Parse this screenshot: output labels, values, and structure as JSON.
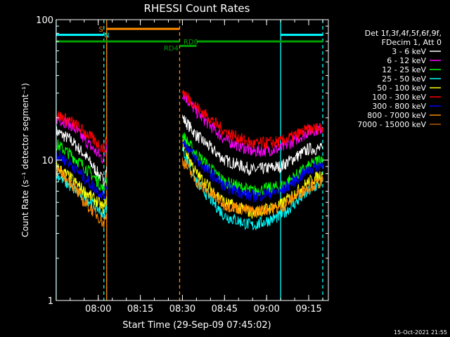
{
  "chart_data": {
    "type": "line",
    "title": "RHESSI Count Rates",
    "xlabel": "Start Time (29-Sep-09 07:45:02)",
    "ylabel": "Count Rate (s⁻¹ detector segment⁻¹)",
    "y_scale": "log",
    "ylim": [
      1,
      100
    ],
    "xlim": [
      "07:45:02",
      "09:22"
    ],
    "y_ticks": [
      "1",
      "10",
      "100"
    ],
    "x_ticks": [
      "08:00",
      "08:15",
      "08:30",
      "08:45",
      "09:00",
      "09:15"
    ],
    "grid": false,
    "legend_position": "top-right",
    "legend_header": [
      "Det 1f,3f,4f,5f,6f,9f,",
      "FDecim 1, Att 0"
    ],
    "footer_timestamp": "15-Oct-2021 21:55",
    "series": [
      {
        "name": "3 - 6 keV",
        "color": "#ffffff",
        "points": [
          [
            "07:45",
            16
          ],
          [
            "07:50",
            14
          ],
          [
            "07:55",
            11
          ],
          [
            "08:00",
            8
          ],
          [
            "08:02",
            7
          ],
          [
            "08:03",
            9
          ],
          [
            "08:30",
            20
          ],
          [
            "08:35",
            15
          ],
          [
            "08:45",
            10
          ],
          [
            "08:55",
            8.5
          ],
          [
            "09:05",
            9
          ],
          [
            "09:15",
            12
          ],
          [
            "09:20",
            12
          ]
        ]
      },
      {
        "name": "6 - 12 keV",
        "color": "#ff00ff",
        "points": [
          [
            "07:45",
            20
          ],
          [
            "07:50",
            18
          ],
          [
            "07:55",
            14
          ],
          [
            "08:00",
            11
          ],
          [
            "08:02",
            10
          ],
          [
            "08:03",
            13
          ],
          [
            "08:30",
            30
          ],
          [
            "08:35",
            22
          ],
          [
            "08:45",
            14
          ],
          [
            "08:55",
            11.5
          ],
          [
            "09:05",
            12
          ],
          [
            "09:15",
            16
          ],
          [
            "09:20",
            17
          ]
        ]
      },
      {
        "name": "12 - 25 keV",
        "color": "#00ff00",
        "points": [
          [
            "07:45",
            13
          ],
          [
            "07:50",
            11
          ],
          [
            "07:55",
            9
          ],
          [
            "08:00",
            7
          ],
          [
            "08:02",
            6
          ],
          [
            "08:03",
            7.5
          ],
          [
            "08:30",
            15
          ],
          [
            "08:35",
            11
          ],
          [
            "08:45",
            7
          ],
          [
            "08:55",
            6
          ],
          [
            "09:05",
            6.5
          ],
          [
            "09:15",
            9
          ],
          [
            "09:20",
            10.5
          ]
        ]
      },
      {
        "name": "25 - 50 keV",
        "color": "#00ffff",
        "points": [
          [
            "07:45",
            8
          ],
          [
            "07:50",
            6.5
          ],
          [
            "07:55",
            5.5
          ],
          [
            "08:00",
            4.5
          ],
          [
            "08:02",
            4
          ],
          [
            "08:03",
            4.8
          ],
          [
            "08:30",
            12
          ],
          [
            "08:35",
            7
          ],
          [
            "08:45",
            4
          ],
          [
            "08:55",
            3.4
          ],
          [
            "09:05",
            4
          ],
          [
            "09:15",
            6
          ],
          [
            "09:20",
            7
          ]
        ]
      },
      {
        "name": "50 - 100 keV",
        "color": "#ffff00",
        "points": [
          [
            "07:45",
            9
          ],
          [
            "07:50",
            7.5
          ],
          [
            "07:55",
            6
          ],
          [
            "08:00",
            5
          ],
          [
            "08:02",
            4.5
          ],
          [
            "08:03",
            5.5
          ],
          [
            "08:30",
            13
          ],
          [
            "08:35",
            8
          ],
          [
            "08:45",
            5
          ],
          [
            "08:55",
            4.2
          ],
          [
            "09:05",
            4.8
          ],
          [
            "09:15",
            7
          ],
          [
            "09:20",
            8
          ]
        ]
      },
      {
        "name": "100 - 300 keV",
        "color": "#ff0000",
        "points": [
          [
            "07:45",
            21
          ],
          [
            "07:50",
            19
          ],
          [
            "07:55",
            16
          ],
          [
            "08:00",
            13
          ],
          [
            "08:02",
            12
          ],
          [
            "08:03",
            14
          ],
          [
            "08:30",
            31
          ],
          [
            "08:35",
            24
          ],
          [
            "08:45",
            16
          ],
          [
            "08:55",
            13
          ],
          [
            "09:05",
            13.5
          ],
          [
            "09:15",
            16.5
          ],
          [
            "09:20",
            17
          ]
        ]
      },
      {
        "name": "300 - 800 keV",
        "color": "#0000ff",
        "points": [
          [
            "07:45",
            11
          ],
          [
            "07:50",
            9.5
          ],
          [
            "07:55",
            7.5
          ],
          [
            "08:00",
            6
          ],
          [
            "08:02",
            5.5
          ],
          [
            "08:03",
            6.5
          ],
          [
            "08:30",
            14
          ],
          [
            "08:35",
            10
          ],
          [
            "08:45",
            6.5
          ],
          [
            "08:55",
            5.5
          ],
          [
            "09:05",
            6
          ],
          [
            "09:15",
            8.5
          ],
          [
            "09:20",
            9.5
          ]
        ]
      },
      {
        "name": "800 - 7000 keV",
        "color": "#ff8c00",
        "points": [
          [
            "07:45",
            8.5
          ],
          [
            "07:50",
            7
          ],
          [
            "07:55",
            5
          ],
          [
            "08:00",
            4
          ],
          [
            "08:02",
            3.5
          ],
          [
            "08:03",
            4.2
          ],
          [
            "08:30",
            10
          ],
          [
            "08:35",
            7
          ],
          [
            "08:45",
            4.8
          ],
          [
            "08:55",
            4.3
          ],
          [
            "09:05",
            4.6
          ],
          [
            "09:15",
            6.5
          ],
          [
            "09:20",
            7
          ]
        ]
      },
      {
        "name": "7000 - 15000 keV",
        "color": "#b45a00",
        "points": []
      }
    ],
    "annotations": [
      {
        "label": "S",
        "color": "#ff8c00"
      },
      {
        "label": "N",
        "color": "#00ffff"
      },
      {
        "label": "RD0",
        "color": "#00a000"
      },
      {
        "label": "RD4",
        "color": "#00a000"
      }
    ],
    "vertical_markers": [
      {
        "time": "07:45",
        "color": "#00ffff",
        "style": "solid"
      },
      {
        "time": "08:02",
        "color": "#00ffff",
        "style": "dashed"
      },
      {
        "time": "08:03",
        "color": "#ff8c00",
        "style": "solid"
      },
      {
        "time": "08:29",
        "color": "#ff8c00",
        "style": "dashed"
      },
      {
        "time": "09:05",
        "color": "#00ffff",
        "style": "solid"
      },
      {
        "time": "09:20",
        "color": "#00ffff",
        "style": "dashed"
      }
    ],
    "horizontal_bars": [
      {
        "from": "07:45",
        "to": "08:02",
        "value": 78,
        "color": "#00ffff"
      },
      {
        "from": "09:05",
        "to": "09:20",
        "value": 78,
        "color": "#00ffff"
      },
      {
        "from": "08:03",
        "to": "08:29",
        "value": 86,
        "color": "#ff8c00"
      },
      {
        "from": "07:45",
        "to": "08:29",
        "value": 70,
        "color": "#00a000"
      },
      {
        "from": "08:29",
        "to": "08:35",
        "value": 65,
        "color": "#00a000"
      },
      {
        "from": "08:35",
        "to": "09:20",
        "value": 70,
        "color": "#00a000"
      }
    ]
  }
}
